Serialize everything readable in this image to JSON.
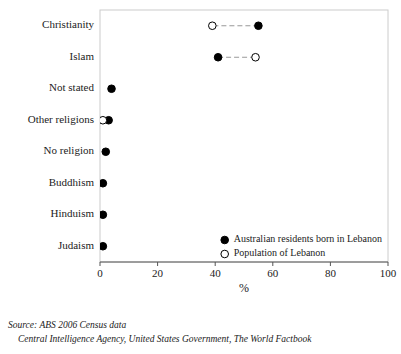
{
  "chart_data": {
    "type": "dot",
    "orientation": "horizontal",
    "categories": [
      "Christianity",
      "Islam",
      "Not stated",
      "Other religions",
      "No religion",
      "Buddhism",
      "Hinduism",
      "Judaism"
    ],
    "series": [
      {
        "name": "Australian residents born in Lebanon",
        "color": "#000000",
        "values": [
          55,
          41,
          4,
          3,
          2,
          1,
          1,
          1
        ]
      },
      {
        "name": "Population of Lebanon",
        "color": "#ffffff",
        "values": [
          39,
          54,
          null,
          1,
          null,
          null,
          null,
          null
        ]
      }
    ],
    "xlabel": "%",
    "xlim": [
      0,
      100
    ],
    "xticks": [
      0,
      20,
      40,
      60,
      80,
      100
    ],
    "grid": false,
    "legend": "lower right",
    "annotations": [
      "Source: ABS 2006 Census data",
      "Central Intelligence Agency, United States Government, The World Factbook"
    ]
  }
}
